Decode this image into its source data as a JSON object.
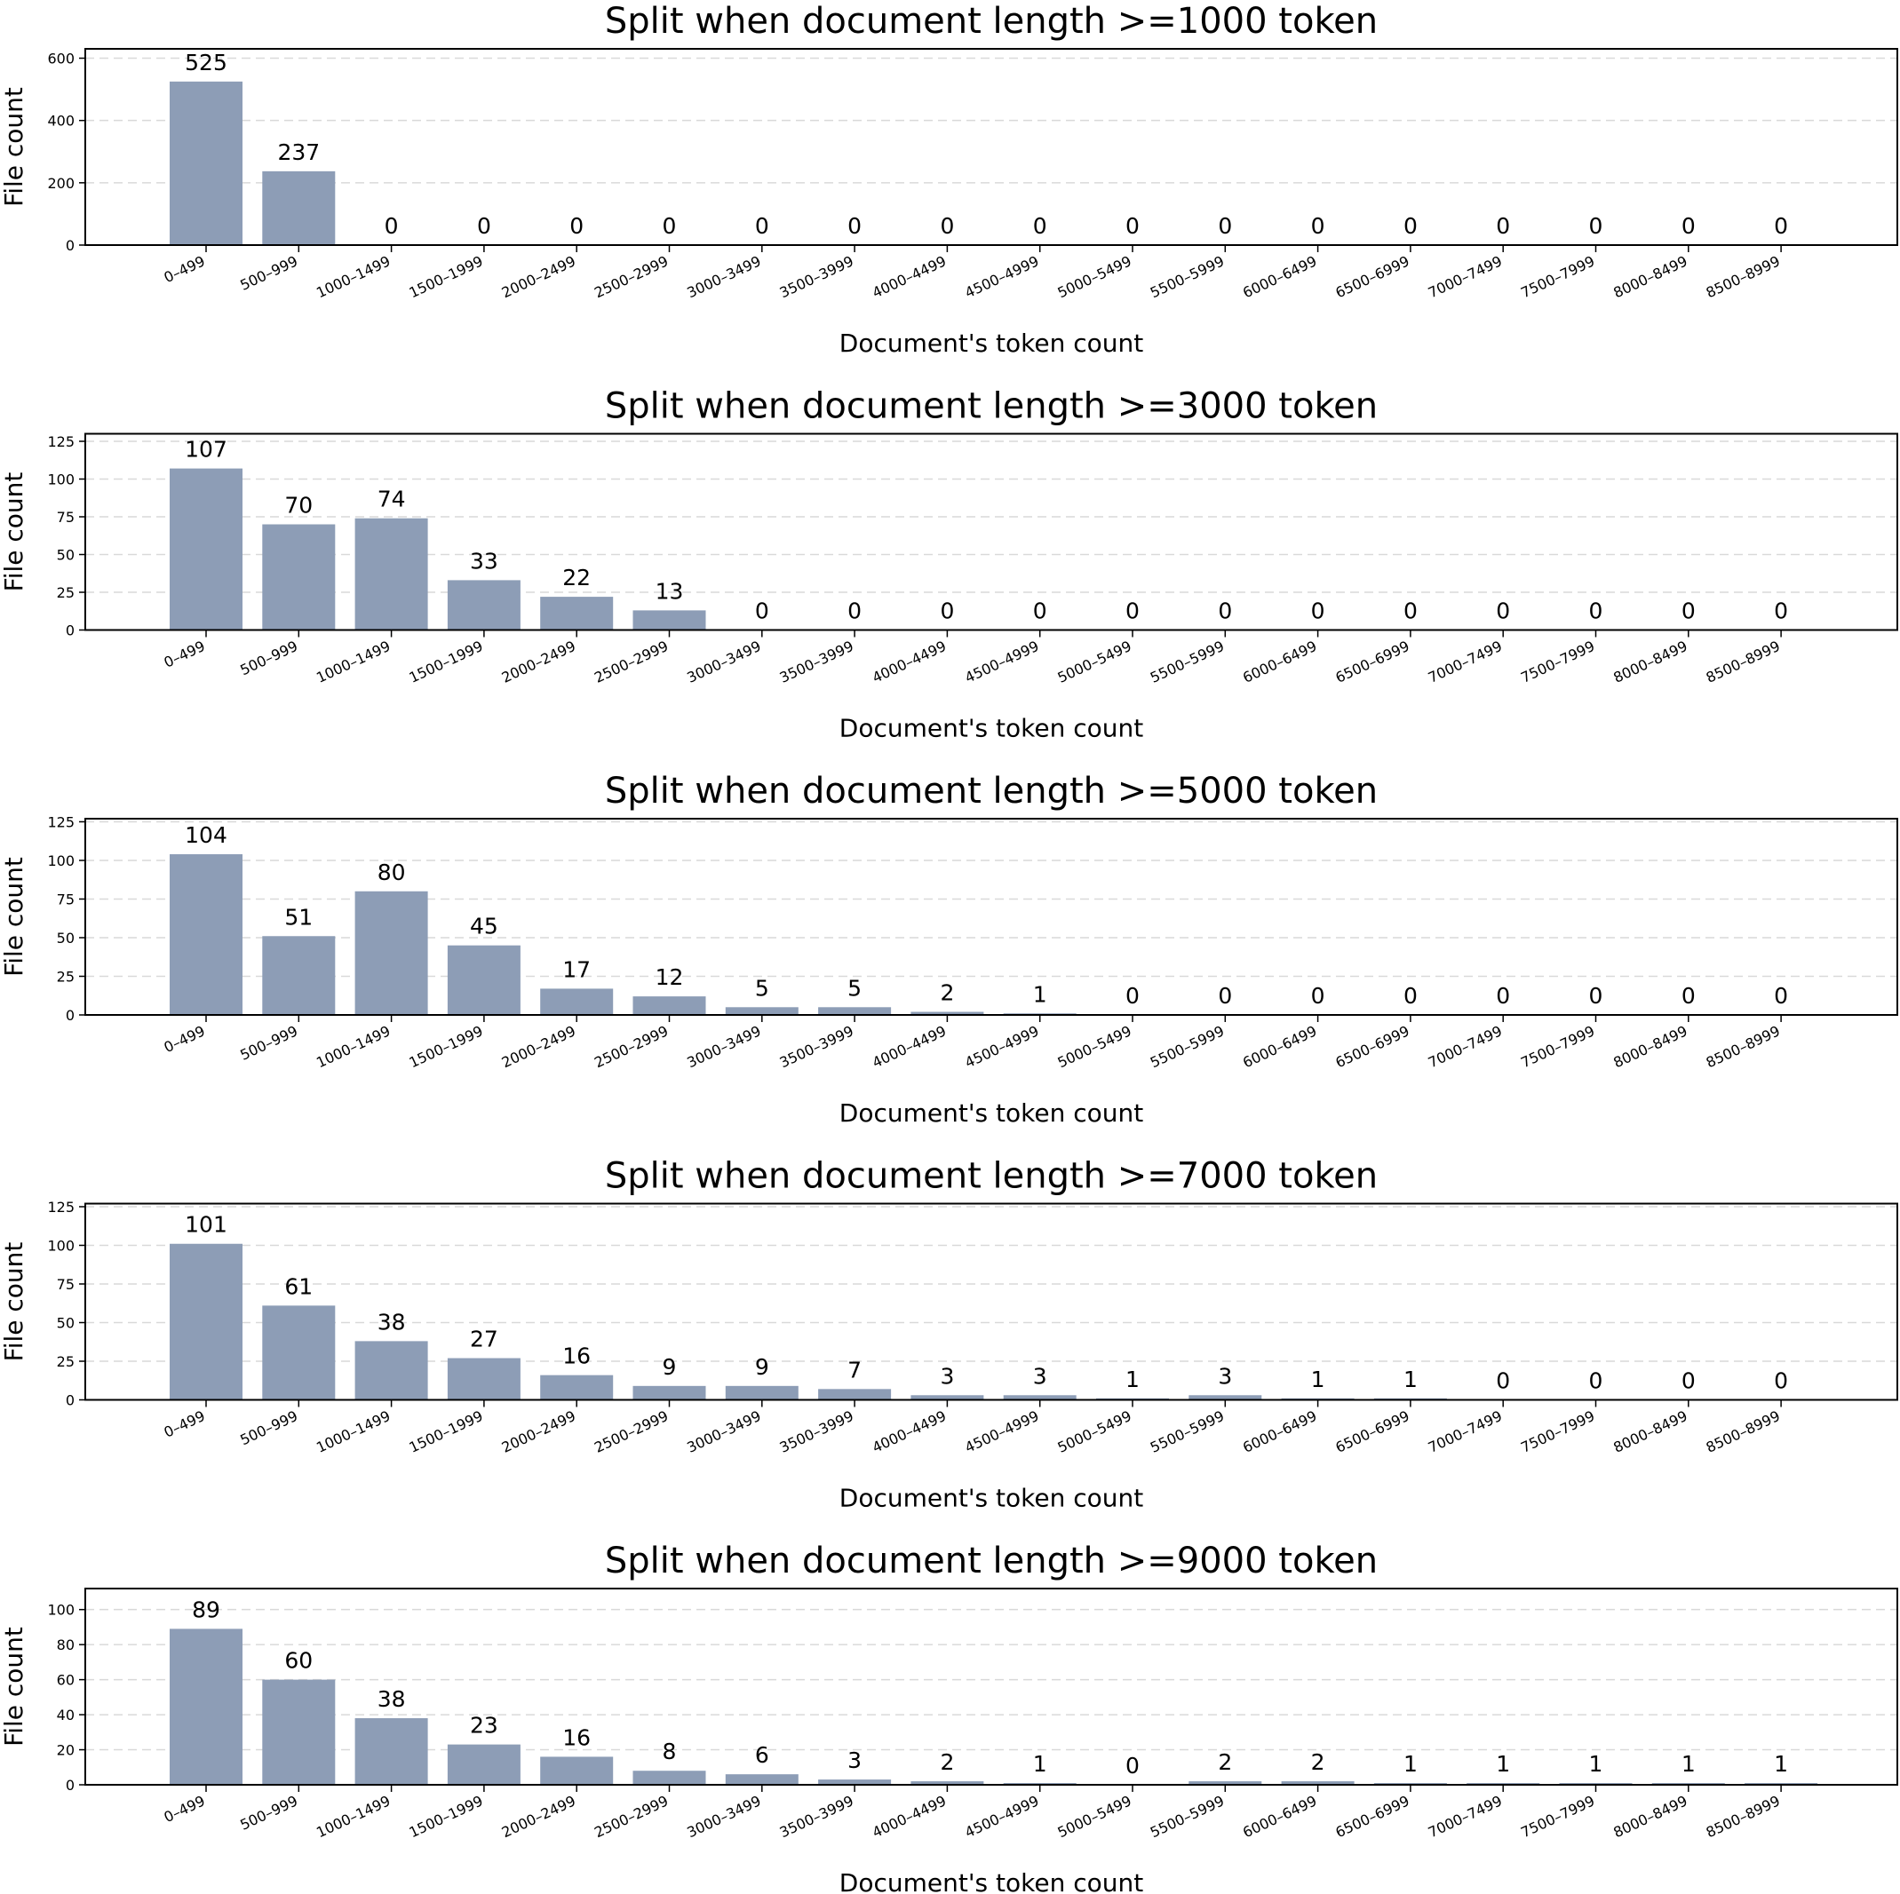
{
  "chart_data": [
    {
      "type": "bar",
      "title": "Split when document length >=1000 token",
      "xlabel": "Document's token count",
      "ylabel": "File count",
      "ylim": [
        0,
        630
      ],
      "yticks": [
        0,
        200,
        400,
        600
      ],
      "grid": true,
      "bar_color": "#8d9db6",
      "categories": [
        "0–499",
        "500–999",
        "1000–1499",
        "1500–1999",
        "2000–2499",
        "2500–2999",
        "3000–3499",
        "3500–3999",
        "4000–4499",
        "4500–4999",
        "5000–5499",
        "5500–5999",
        "6000–6499",
        "6500–6999",
        "7000–7499",
        "7500–7999",
        "8000–8499",
        "8500–8999"
      ],
      "values": [
        525,
        237,
        0,
        0,
        0,
        0,
        0,
        0,
        0,
        0,
        0,
        0,
        0,
        0,
        0,
        0,
        0,
        0
      ]
    },
    {
      "type": "bar",
      "title": "Split when document length >=3000 token",
      "xlabel": "Document's token count",
      "ylabel": "File count",
      "ylim": [
        0,
        130
      ],
      "yticks": [
        0,
        25,
        50,
        75,
        100,
        125
      ],
      "grid": true,
      "bar_color": "#8d9db6",
      "categories": [
        "0–499",
        "500–999",
        "1000–1499",
        "1500–1999",
        "2000–2499",
        "2500–2999",
        "3000–3499",
        "3500–3999",
        "4000–4499",
        "4500–4999",
        "5000–5499",
        "5500–5999",
        "6000–6499",
        "6500–6999",
        "7000–7499",
        "7500–7999",
        "8000–8499",
        "8500–8999"
      ],
      "values": [
        107,
        70,
        74,
        33,
        22,
        13,
        0,
        0,
        0,
        0,
        0,
        0,
        0,
        0,
        0,
        0,
        0,
        0
      ]
    },
    {
      "type": "bar",
      "title": "Split when document length >=5000 token",
      "xlabel": "Document's token count",
      "ylabel": "File count",
      "ylim": [
        0,
        127
      ],
      "yticks": [
        0,
        25,
        50,
        75,
        100,
        125
      ],
      "grid": true,
      "bar_color": "#8d9db6",
      "categories": [
        "0–499",
        "500–999",
        "1000–1499",
        "1500–1999",
        "2000–2499",
        "2500–2999",
        "3000–3499",
        "3500–3999",
        "4000–4499",
        "4500–4999",
        "5000–5499",
        "5500–5999",
        "6000–6499",
        "6500–6999",
        "7000–7499",
        "7500–7999",
        "8000–8499",
        "8500–8999"
      ],
      "values": [
        104,
        51,
        80,
        45,
        17,
        12,
        5,
        5,
        2,
        1,
        0,
        0,
        0,
        0,
        0,
        0,
        0,
        0
      ]
    },
    {
      "type": "bar",
      "title": "Split when document length >=7000 token",
      "xlabel": "Document's token count",
      "ylabel": "File count",
      "ylim": [
        0,
        127
      ],
      "yticks": [
        0,
        25,
        50,
        75,
        100,
        125
      ],
      "grid": true,
      "bar_color": "#8d9db6",
      "categories": [
        "0–499",
        "500–999",
        "1000–1499",
        "1500–1999",
        "2000–2499",
        "2500–2999",
        "3000–3499",
        "3500–3999",
        "4000–4499",
        "4500–4999",
        "5000–5499",
        "5500–5999",
        "6000–6499",
        "6500–6999",
        "7000–7499",
        "7500–7999",
        "8000–8499",
        "8500–8999"
      ],
      "values": [
        101,
        61,
        38,
        27,
        16,
        9,
        9,
        7,
        3,
        3,
        1,
        3,
        1,
        1,
        0,
        0,
        0,
        0
      ]
    },
    {
      "type": "bar",
      "title": "Split when document length >=9000 token",
      "xlabel": "Document's token count",
      "ylabel": "File count",
      "ylim": [
        0,
        112
      ],
      "yticks": [
        0,
        20,
        40,
        60,
        80,
        100
      ],
      "grid": true,
      "bar_color": "#8d9db6",
      "categories": [
        "0–499",
        "500–999",
        "1000–1499",
        "1500–1999",
        "2000–2499",
        "2500–2999",
        "3000–3499",
        "3500–3999",
        "4000–4499",
        "4500–4999",
        "5000–5499",
        "5500–5999",
        "6000–6499",
        "6500–6999",
        "7000–7499",
        "7500–7999",
        "8000–8499",
        "8500–8999"
      ],
      "values": [
        89,
        60,
        38,
        23,
        16,
        8,
        6,
        3,
        2,
        1,
        0,
        2,
        2,
        1,
        1,
        1,
        1,
        1
      ]
    }
  ]
}
